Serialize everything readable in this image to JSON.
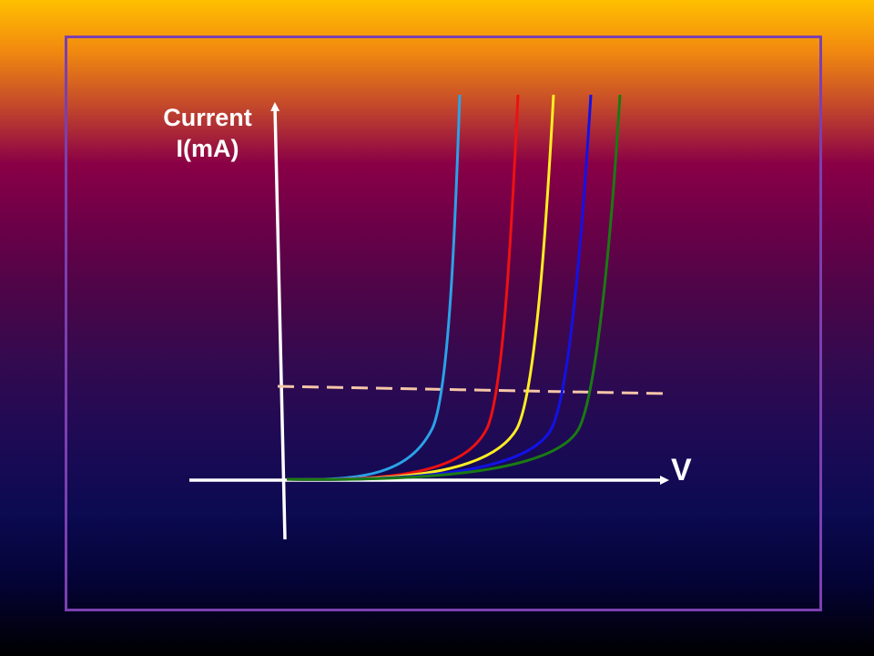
{
  "axes": {
    "y_label_line1": "Current",
    "y_label_line2": "I(mA)",
    "x_label": "V"
  },
  "colors": {
    "frame": "#7b3fb0",
    "axis": "#ffffff",
    "dashed_line": "#f6c6a8",
    "curves": [
      "#2aa2e8",
      "#ee1111",
      "#ffee22",
      "#1212e6",
      "#1a7a12"
    ]
  },
  "curves": [
    {
      "color_name": "light-blue",
      "color": "#2aa2e8"
    },
    {
      "color_name": "red",
      "color": "#ee1111"
    },
    {
      "color_name": "yellow",
      "color": "#ffee22"
    },
    {
      "color_name": "blue",
      "color": "#1212e6"
    },
    {
      "color_name": "green",
      "color": "#1a7a12"
    }
  ]
}
